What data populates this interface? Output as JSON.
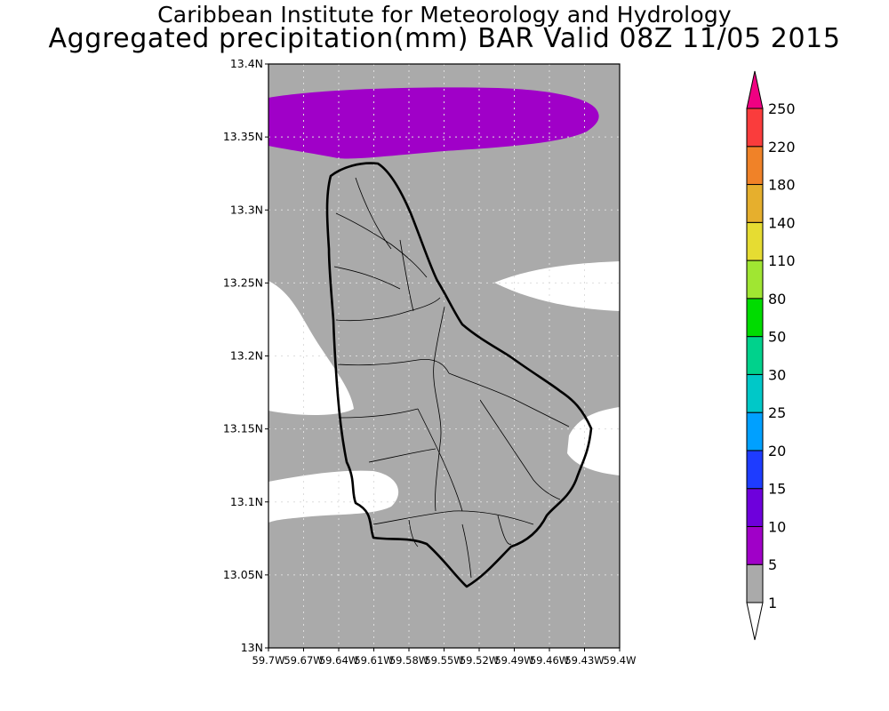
{
  "title": {
    "line1": "Caribbean Institute for Meteorology and Hydrology",
    "line2": "Aggregated precipitation(mm) BAR Valid 08Z 11/05 2015"
  },
  "map": {
    "lat_labels": [
      "13.4N",
      "13.35N",
      "13.3N",
      "13.25N",
      "13.2N",
      "13.15N",
      "13.1N",
      "13.05N",
      "13N"
    ],
    "lon_labels": [
      "59.7W",
      "59.67W",
      "59.64W",
      "59.61W",
      "59.58W",
      "59.55W",
      "59.52W",
      "59.49W",
      "59.46W",
      "59.43W",
      "59.4W"
    ],
    "lat_range": [
      13.0,
      13.4
    ],
    "lon_range": [
      -59.7,
      -59.4
    ],
    "background_color": "#aaaaaa",
    "zone_colors": {
      "below_1": "#ffffff",
      "range_5_10": "#a000c8"
    }
  },
  "colorbar": {
    "labels": [
      "1",
      "5",
      "10",
      "15",
      "20",
      "25",
      "30",
      "50",
      "80",
      "110",
      "140",
      "180",
      "220",
      "250"
    ],
    "colors": [
      "#ffffff",
      "#aaaaaa",
      "#a000c8",
      "#6e00dc",
      "#1e3cff",
      "#00a0ff",
      "#00c8c8",
      "#00d28c",
      "#00dc00",
      "#a0e632",
      "#e6dc32",
      "#e6af2d",
      "#f08228",
      "#fa3c3c",
      "#f00082"
    ]
  }
}
